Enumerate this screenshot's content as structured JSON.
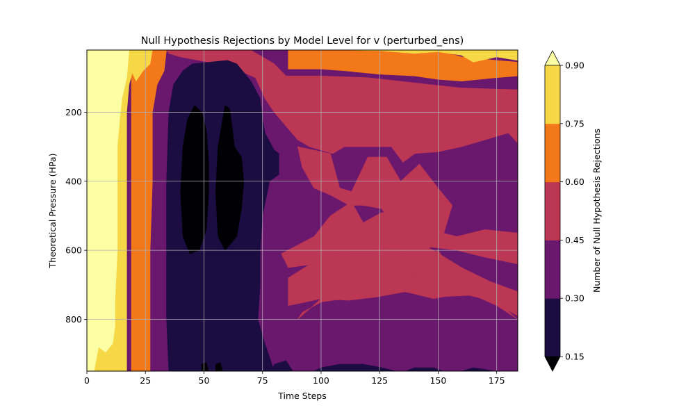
{
  "chart_data": {
    "type": "filled-contour",
    "title": "Null Hypothesis Rejections by Model Level for v (perturbed_ens)",
    "xlabel": "Time Steps",
    "ylabel": "Theoretical Pressure (HPa)",
    "xlim": [
      0,
      184
    ],
    "ylim": [
      950,
      20
    ],
    "y_inverted": true,
    "x_ticks": [
      0,
      25,
      50,
      75,
      100,
      125,
      150,
      175
    ],
    "y_ticks": [
      200,
      400,
      600,
      800
    ],
    "grid": true,
    "colorbar": {
      "label": "Number of Null Hypothesis Rejections",
      "levels": [
        0.15,
        0.3,
        0.45,
        0.6,
        0.75,
        0.9
      ],
      "tick_labels": [
        "0.15",
        "0.30",
        "0.45",
        "0.60",
        "0.75",
        "0.90"
      ],
      "extend": "both",
      "under_color": "#000004",
      "over_color": "#fcffa4",
      "colors": [
        "#1b0c41",
        "#6a176e",
        "#bc3754",
        "#f37819",
        "#f6d746"
      ]
    },
    "regions": [
      {
        "level": "0.30-0.45",
        "color": "#6a176e",
        "points": [
          [
            30,
            20
          ],
          [
            184,
            20
          ],
          [
            184,
            950
          ],
          [
            30,
            950
          ]
        ]
      },
      {
        "level": "0.45-0.60",
        "color": "#bc3754",
        "points": [
          [
            34,
            20
          ],
          [
            70,
            20
          ],
          [
            80,
            60
          ],
          [
            85,
            95
          ],
          [
            100,
            95
          ],
          [
            120,
            100
          ],
          [
            140,
            115
          ],
          [
            160,
            130
          ],
          [
            184,
            135
          ],
          [
            184,
            290
          ],
          [
            180,
            260
          ],
          [
            170,
            280
          ],
          [
            160,
            300
          ],
          [
            150,
            315
          ],
          [
            140,
            320
          ],
          [
            135,
            345
          ],
          [
            130,
            300
          ],
          [
            110,
            300
          ],
          [
            105,
            320
          ],
          [
            95,
            300
          ],
          [
            90,
            280
          ],
          [
            85,
            240
          ],
          [
            80,
            200
          ],
          [
            76,
            160
          ],
          [
            72,
            100
          ],
          [
            60,
            65
          ],
          [
            40,
            40
          ],
          [
            35,
            30
          ]
        ]
      },
      {
        "level": "0.45-0.60",
        "color": "#bc3754",
        "points": [
          [
            90,
            800
          ],
          [
            100,
            740
          ],
          [
            120,
            680
          ],
          [
            140,
            640
          ],
          [
            150,
            600
          ],
          [
            160,
            700
          ],
          [
            170,
            720
          ],
          [
            184,
            800
          ],
          [
            175,
            760
          ],
          [
            165,
            730
          ],
          [
            150,
            735
          ],
          [
            135,
            720
          ],
          [
            120,
            735
          ],
          [
            105,
            745
          ],
          [
            100,
            750
          ],
          [
            92,
            780
          ]
        ]
      },
      {
        "level": "0.45-0.60",
        "color": "#bc3754",
        "points": [
          [
            86,
            680
          ],
          [
            100,
            620
          ],
          [
            112,
            580
          ],
          [
            124,
            540
          ],
          [
            136,
            560
          ],
          [
            148,
            600
          ],
          [
            160,
            650
          ],
          [
            172,
            690
          ],
          [
            184,
            720
          ],
          [
            184,
            790
          ],
          [
            172,
            745
          ],
          [
            160,
            725
          ],
          [
            148,
            740
          ],
          [
            136,
            720
          ],
          [
            124,
            735
          ],
          [
            112,
            745
          ],
          [
            100,
            740
          ],
          [
            90,
            755
          ],
          [
            86,
            760
          ]
        ]
      },
      {
        "level": "0.45-0.60",
        "color": "#bc3754",
        "points": [
          [
            83,
            610
          ],
          [
            97,
            560
          ],
          [
            104,
            500
          ],
          [
            113,
            460
          ],
          [
            118,
            520
          ],
          [
            126,
            490
          ],
          [
            134,
            520
          ],
          [
            146,
            540
          ],
          [
            158,
            560
          ],
          [
            170,
            540
          ],
          [
            184,
            550
          ],
          [
            184,
            640
          ],
          [
            170,
            620
          ],
          [
            158,
            600
          ],
          [
            146,
            590
          ],
          [
            134,
            580
          ],
          [
            122,
            600
          ],
          [
            110,
            610
          ],
          [
            97,
            640
          ],
          [
            86,
            650
          ]
        ]
      },
      {
        "level": "0.45-0.60",
        "color": "#bc3754",
        "points": [
          [
            90,
            300
          ],
          [
            104,
            320
          ],
          [
            108,
            420
          ],
          [
            113,
            430
          ],
          [
            120,
            330
          ],
          [
            128,
            330
          ],
          [
            134,
            400
          ],
          [
            142,
            350
          ],
          [
            150,
            420
          ],
          [
            156,
            470
          ],
          [
            152,
            560
          ],
          [
            145,
            600
          ],
          [
            140,
            680
          ],
          [
            132,
            560
          ],
          [
            126,
            480
          ],
          [
            118,
            470
          ],
          [
            112,
            470
          ],
          [
            104,
            440
          ],
          [
            97,
            420
          ],
          [
            92,
            360
          ]
        ]
      },
      {
        "level": "0.60-0.75",
        "color": "#f37819",
        "points": [
          [
            19,
            950
          ],
          [
            19,
            30
          ],
          [
            24,
            20
          ],
          [
            34,
            20
          ],
          [
            33,
            80
          ],
          [
            30,
            120
          ],
          [
            28,
            200
          ],
          [
            28,
            400
          ],
          [
            27,
            600
          ],
          [
            27,
            800
          ],
          [
            27,
            950
          ]
        ]
      },
      {
        "level": "0.60-0.75",
        "color": "#f37819",
        "points": [
          [
            86,
            20
          ],
          [
            150,
            20
          ],
          [
            160,
            40
          ],
          [
            175,
            50
          ],
          [
            184,
            55
          ],
          [
            184,
            95
          ],
          [
            175,
            100
          ],
          [
            160,
            110
          ],
          [
            150,
            105
          ],
          [
            140,
            95
          ],
          [
            125,
            90
          ],
          [
            110,
            80
          ],
          [
            100,
            75
          ],
          [
            86,
            75
          ]
        ]
      },
      {
        "level": "0.75-0.90",
        "color": "#f6d746",
        "points": [
          [
            0,
            950
          ],
          [
            0,
            20
          ],
          [
            22,
            20
          ],
          [
            18,
            120
          ],
          [
            17,
            200
          ],
          [
            17,
            950
          ]
        ]
      },
      {
        "level": "0.75-0.90",
        "color": "#f6d746",
        "points": [
          [
            20,
            20
          ],
          [
            28,
            20
          ],
          [
            27,
            60
          ],
          [
            24,
            80
          ],
          [
            21,
            110
          ],
          [
            19,
            80
          ]
        ]
      },
      {
        "level": "0.75-0.90",
        "color": "#f6d746",
        "points": [
          [
            108,
            20
          ],
          [
            184,
            20
          ],
          [
            184,
            50
          ],
          [
            175,
            40
          ],
          [
            165,
            55
          ],
          [
            160,
            35
          ],
          [
            150,
            25
          ],
          [
            140,
            30
          ],
          [
            125,
            22
          ]
        ]
      },
      {
        "level": "over 0.90",
        "color": "#fcffa4",
        "points": [
          [
            0,
            20
          ],
          [
            18,
            20
          ],
          [
            17,
            100
          ],
          [
            15,
            160
          ],
          [
            14,
            220
          ],
          [
            13,
            300
          ],
          [
            13,
            400
          ],
          [
            13,
            600
          ],
          [
            12,
            750
          ],
          [
            12,
            820
          ],
          [
            11,
            870
          ],
          [
            8,
            895
          ],
          [
            5,
            880
          ],
          [
            3,
            950
          ],
          [
            0,
            950
          ]
        ]
      },
      {
        "level": "0.15-0.30",
        "color": "#1b0c41",
        "points": [
          [
            35,
            950
          ],
          [
            34,
            800
          ],
          [
            34,
            600
          ],
          [
            34,
            400
          ],
          [
            35,
            200
          ],
          [
            37,
            120
          ],
          [
            41,
            80
          ],
          [
            45,
            60
          ],
          [
            60,
            50
          ],
          [
            64,
            60
          ],
          [
            70,
            110
          ],
          [
            74,
            160
          ],
          [
            75,
            220
          ],
          [
            76,
            260
          ],
          [
            80,
            310
          ],
          [
            82,
            320
          ],
          [
            82,
            380
          ],
          [
            78,
            400
          ],
          [
            75,
            500
          ],
          [
            74,
            600
          ],
          [
            74,
            700
          ],
          [
            73,
            800
          ],
          [
            76,
            870
          ],
          [
            80,
            950
          ]
        ]
      },
      {
        "level": "0.15-0.30",
        "color": "#1b0c41",
        "points": [
          [
            79,
            950
          ],
          [
            80,
            930
          ],
          [
            85,
            920
          ],
          [
            88,
            950
          ]
        ]
      },
      {
        "level": "0.15-0.30",
        "color": "#1b0c41",
        "points": [
          [
            97,
            950
          ],
          [
            100,
            940
          ],
          [
            108,
            930
          ],
          [
            118,
            930
          ],
          [
            126,
            940
          ],
          [
            132,
            950
          ]
        ]
      },
      {
        "level": "0.15-0.30",
        "color": "#1b0c41",
        "points": [
          [
            136,
            950
          ],
          [
            140,
            940
          ],
          [
            148,
            940
          ],
          [
            152,
            950
          ]
        ]
      },
      {
        "level": "0.15-0.30",
        "color": "#1b0c41",
        "points": [
          [
            160,
            950
          ],
          [
            165,
            940
          ],
          [
            170,
            945
          ],
          [
            174,
            950
          ]
        ]
      },
      {
        "level": "under 0.15",
        "color": "#000004",
        "points": [
          [
            41,
            560
          ],
          [
            40,
            430
          ],
          [
            41,
            300
          ],
          [
            43,
            220
          ],
          [
            46,
            180
          ],
          [
            49,
            200
          ],
          [
            51,
            250
          ],
          [
            52,
            340
          ],
          [
            52,
            440
          ],
          [
            51,
            540
          ],
          [
            48,
            600
          ],
          [
            44,
            610
          ]
        ]
      },
      {
        "level": "under 0.15",
        "color": "#000004",
        "points": [
          [
            56,
            560
          ],
          [
            55,
            430
          ],
          [
            56,
            300
          ],
          [
            58,
            220
          ],
          [
            59,
            180
          ],
          [
            61,
            190
          ],
          [
            62,
            240
          ],
          [
            63,
            300
          ],
          [
            66,
            330
          ],
          [
            67,
            400
          ],
          [
            66,
            480
          ],
          [
            64,
            560
          ],
          [
            59,
            600
          ]
        ]
      },
      {
        "level": "under 0.15",
        "color": "#000004",
        "points": [
          [
            49,
            950
          ],
          [
            49,
            930
          ],
          [
            51,
            925
          ],
          [
            52,
            950
          ]
        ]
      },
      {
        "level": "under 0.15",
        "color": "#000004",
        "points": [
          [
            55,
            950
          ],
          [
            55,
            930
          ],
          [
            57,
            925
          ],
          [
            58,
            950
          ]
        ]
      }
    ]
  }
}
